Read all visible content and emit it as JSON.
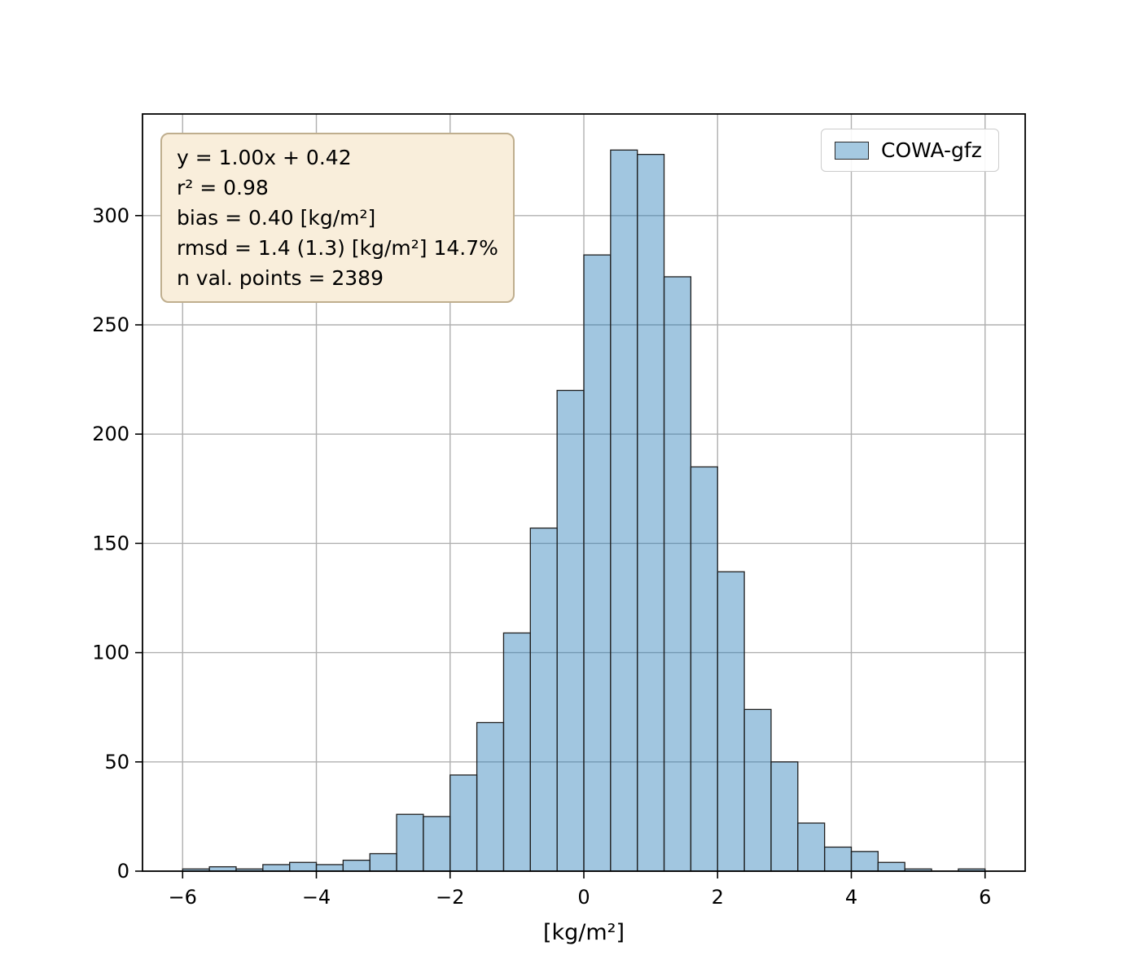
{
  "figure": {
    "background": "#ffffff",
    "bar_fill": "#1f77b4",
    "bar_fill_opacity": 0.42,
    "bar_edge": "#1f1f1f",
    "grid_color": "#b0b0b0",
    "axis_color": "#000000",
    "tick_label_color": "#000000"
  },
  "stats_box": {
    "bg": "#f9eedb",
    "border": "#bfae8e"
  },
  "legend": {
    "swatch_fill": "#a5c9e1",
    "swatch_edge": "#2a2a2a"
  },
  "chart_data": {
    "type": "bar",
    "subtype": "histogram",
    "title": "",
    "xlabel": "[kg/m²]",
    "ylabel": "",
    "xlim": [
      -6.6,
      6.6
    ],
    "ylim": [
      0,
      346.5
    ],
    "grid": true,
    "legend_position": "upper right",
    "xticks": {
      "values": [
        -6,
        -4,
        -2,
        0,
        2,
        4,
        6
      ],
      "labels": [
        "−6",
        "−4",
        "−2",
        "0",
        "2",
        "4",
        "6"
      ]
    },
    "yticks": {
      "values": [
        0,
        50,
        100,
        150,
        200,
        250,
        300
      ],
      "labels": [
        "0",
        "50",
        "100",
        "150",
        "200",
        "250",
        "300"
      ]
    },
    "series": [
      {
        "name": "COWA-gfz",
        "bin_start": -6.0,
        "bin_width": 0.4,
        "counts": [
          1,
          2,
          1,
          3,
          4,
          3,
          5,
          8,
          26,
          25,
          44,
          68,
          109,
          157,
          220,
          282,
          330,
          328,
          272,
          185,
          137,
          74,
          50,
          22,
          11,
          9,
          4,
          1,
          0,
          1
        ]
      }
    ],
    "annotations": [
      "y = 1.00x + 0.42",
      "r² = 0.98",
      "bias = 0.40 [kg/m²]",
      "rmsd = 1.4 (1.3) [kg/m²] 14.7%",
      "n val. points = 2389"
    ]
  }
}
